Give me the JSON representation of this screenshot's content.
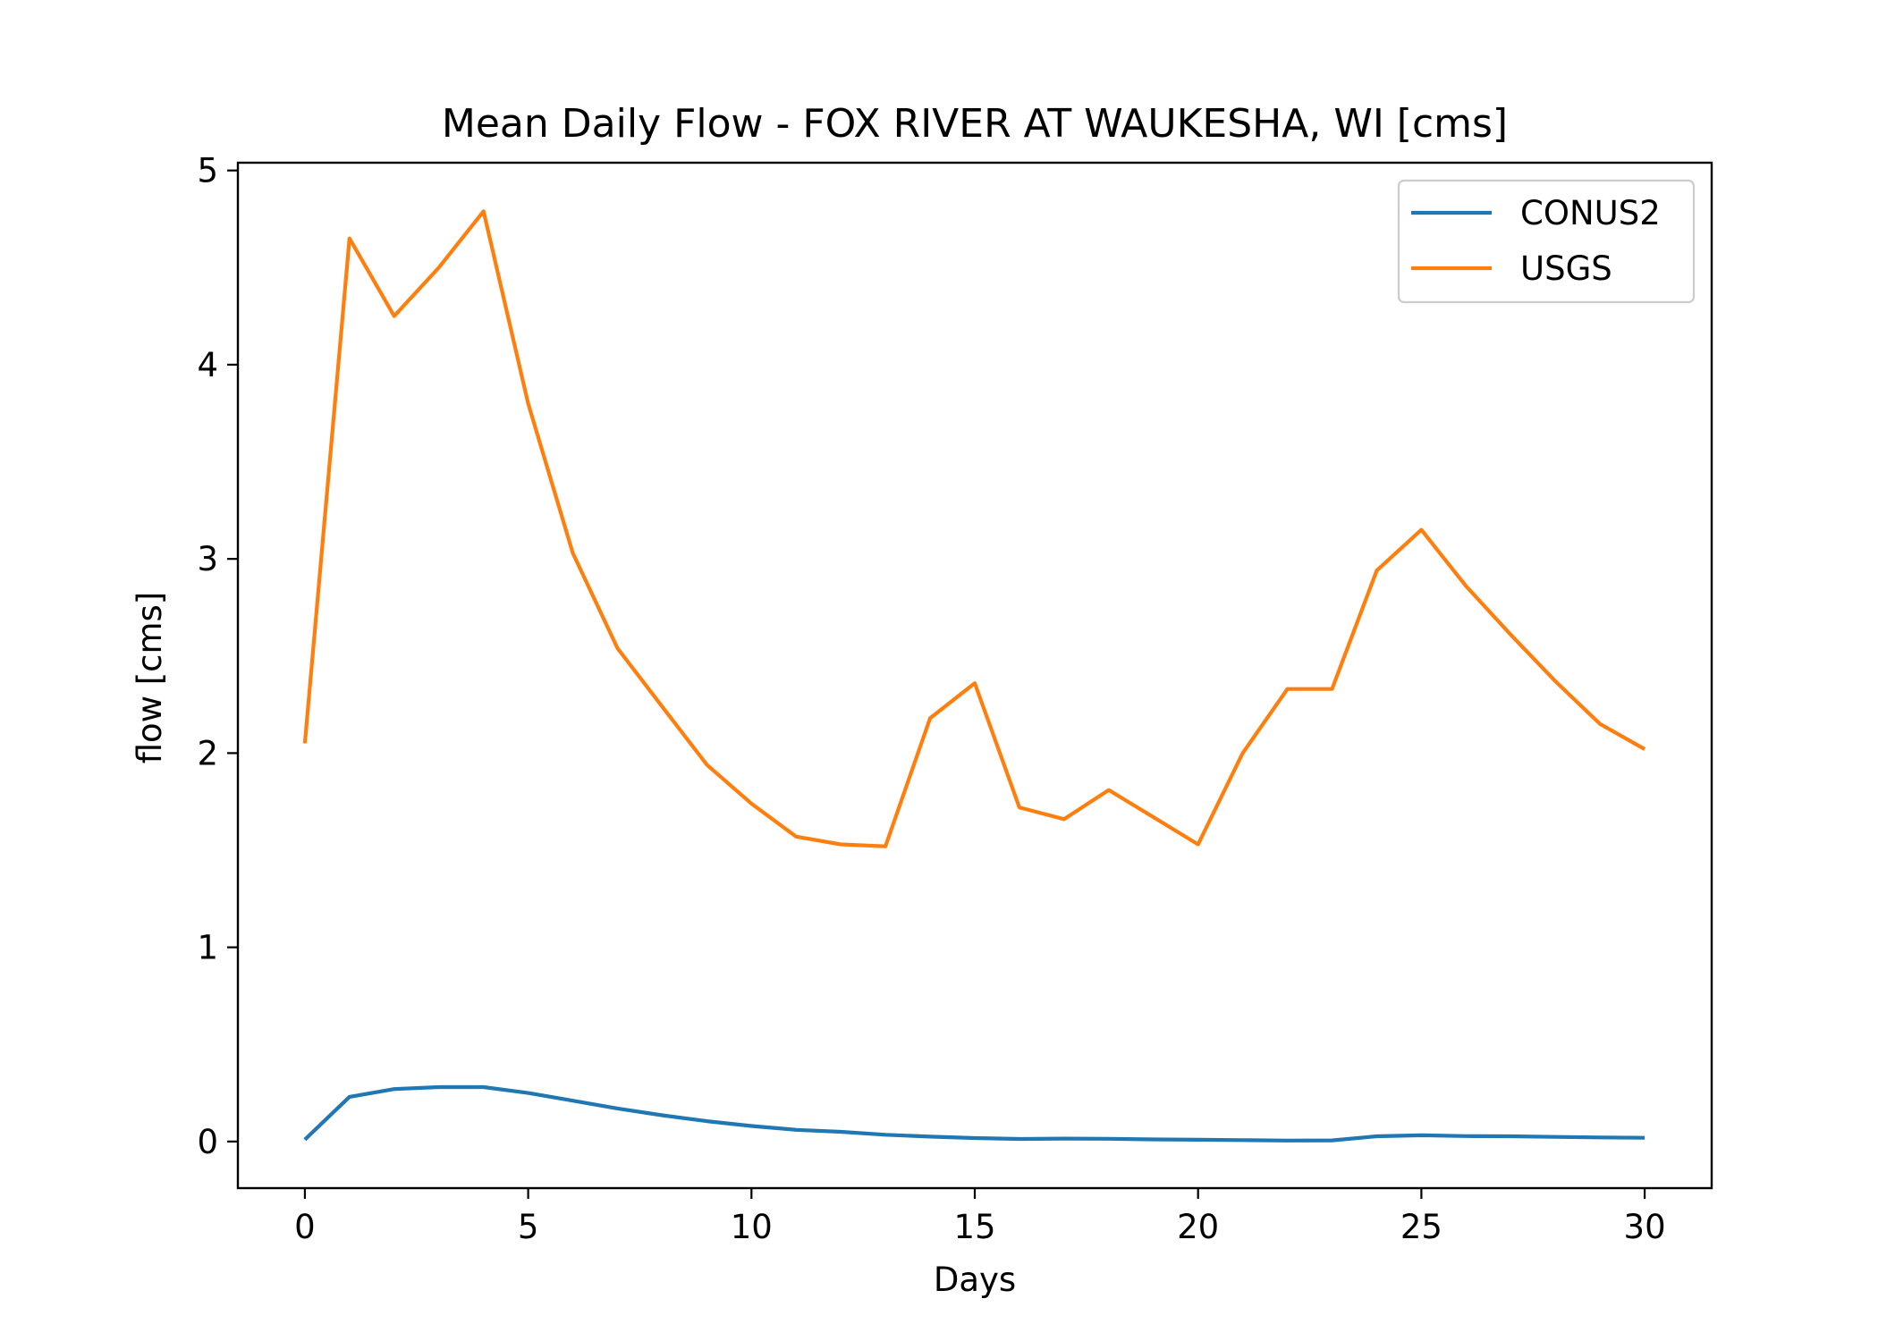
{
  "chart_data": {
    "type": "line",
    "title": "Mean Daily Flow - FOX RIVER AT WAUKESHA, WI [cms]",
    "xlabel": "Days",
    "ylabel": "flow [cms]",
    "xlim": [
      -1.5,
      31.5
    ],
    "ylim": [
      -0.24,
      5.04
    ],
    "xticks": [
      0,
      5,
      10,
      15,
      20,
      25,
      30
    ],
    "xtick_labels": [
      "0",
      "5",
      "10",
      "15",
      "20",
      "25",
      "30"
    ],
    "yticks": [
      0,
      1,
      2,
      3,
      4,
      5
    ],
    "ytick_labels": [
      "0",
      "1",
      "2",
      "3",
      "4",
      "5"
    ],
    "grid": false,
    "legend_position": "top-right",
    "x": [
      0,
      1,
      2,
      3,
      4,
      5,
      6,
      7,
      8,
      9,
      10,
      11,
      12,
      13,
      14,
      15,
      16,
      17,
      18,
      19,
      20,
      21,
      22,
      23,
      24,
      25,
      26,
      27,
      28,
      29,
      30
    ],
    "series": [
      {
        "name": "CONUS2",
        "color": "#1f77b4",
        "values": [
          0.01,
          0.23,
          0.27,
          0.28,
          0.28,
          0.25,
          0.21,
          0.17,
          0.135,
          0.105,
          0.08,
          0.06,
          0.05,
          0.035,
          0.025,
          0.018,
          0.013,
          0.015,
          0.014,
          0.011,
          0.009,
          0.007,
          0.005,
          0.006,
          0.027,
          0.032,
          0.028,
          0.027,
          0.024,
          0.021,
          0.019
        ]
      },
      {
        "name": "USGS",
        "color": "#ff7f0e",
        "values": [
          2.05,
          4.65,
          4.25,
          4.5,
          4.79,
          3.8,
          3.03,
          2.54,
          2.24,
          1.94,
          1.74,
          1.57,
          1.53,
          1.52,
          2.18,
          2.36,
          1.72,
          1.66,
          1.81,
          1.67,
          1.53,
          2.0,
          2.33,
          2.33,
          2.94,
          3.15,
          2.86,
          2.61,
          2.37,
          2.15,
          2.02
        ]
      }
    ]
  }
}
